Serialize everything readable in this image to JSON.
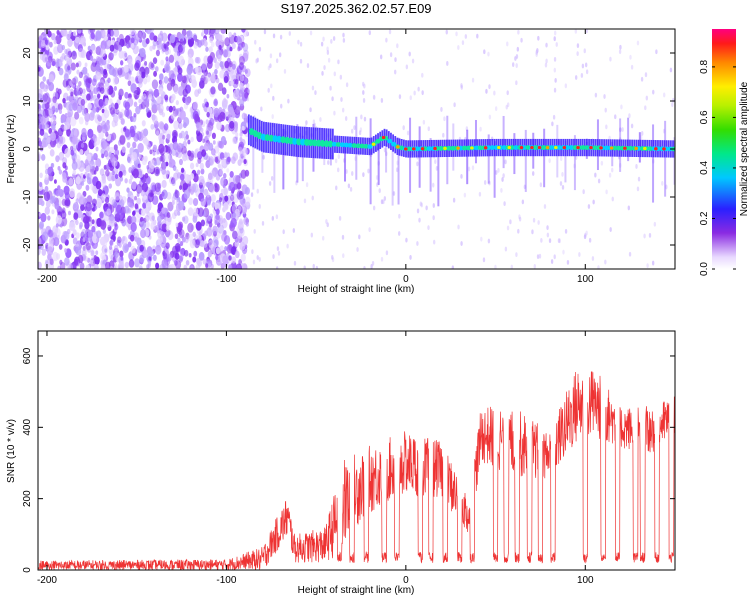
{
  "figure": {
    "title": "S197.2025.362.02.57.E09"
  },
  "chart_data": [
    {
      "type": "heatmap",
      "title": "S197.2025.362.02.57.E09",
      "xlabel": "Height of straight line (km)",
      "ylabel": "Frequency (Hz)",
      "xlim": [
        -205,
        150
      ],
      "ylim": [
        -25,
        25
      ],
      "xticks": [
        -200,
        -100,
        0,
        100
      ],
      "yticks": [
        -20,
        -10,
        0,
        10,
        20
      ],
      "description_of_data": {
        "noise_region_x": [
          -205,
          -88
        ],
        "signal_onset_x": -88,
        "carrier_frequency_hz": 0,
        "carrier_track": [
          {
            "x": -88,
            "f": 4.0
          },
          {
            "x": -80,
            "f": 2.5
          },
          {
            "x": -60,
            "f": 1.5
          },
          {
            "x": -40,
            "f": 1.0
          },
          {
            "x": -20,
            "f": 0.5
          },
          {
            "x": -12,
            "f": 2.5
          },
          {
            "x": -5,
            "f": 0.5
          },
          {
            "x": 0,
            "f": 0.0
          },
          {
            "x": 50,
            "f": 0.3
          },
          {
            "x": 100,
            "f": 0.3
          },
          {
            "x": 150,
            "f": 0.0
          }
        ]
      },
      "colorbar": {
        "label": "Normalized spectral amplitude",
        "range": [
          0.0,
          0.95
        ],
        "ticks": [
          0.0,
          0.2,
          0.4,
          0.6,
          0.8
        ],
        "tick_labels": [
          "0.0",
          "0.2",
          "0.4",
          "0.6",
          "0.8"
        ]
      }
    },
    {
      "type": "line",
      "title": "",
      "xlabel": "Height of straight line (km)",
      "ylabel": "SNR (10 * v/v)",
      "xlim": [
        -205,
        150
      ],
      "ylim": [
        0,
        670
      ],
      "xticks": [
        -200,
        -100,
        0,
        100
      ],
      "yticks": [
        0,
        200,
        400,
        600
      ],
      "color": "#ee3333",
      "series": [
        {
          "name": "SNR",
          "envelope": [
            {
              "x": -205,
              "base": 12,
              "spread": 15
            },
            {
              "x": -100,
              "base": 15,
              "spread": 15
            },
            {
              "x": -80,
              "base": 30,
              "spread": 35
            },
            {
              "x": -66,
              "base": 150,
              "spread": 60
            },
            {
              "x": -62,
              "base": 60,
              "spread": 40
            },
            {
              "x": -45,
              "base": 70,
              "spread": 50
            },
            {
              "x": -35,
              "base": 180,
              "spread": 130
            },
            {
              "x": -25,
              "base": 240,
              "spread": 100
            },
            {
              "x": -10,
              "base": 280,
              "spread": 90
            },
            {
              "x": 0,
              "base": 300,
              "spread": 90
            },
            {
              "x": 20,
              "base": 280,
              "spread": 80
            },
            {
              "x": 35,
              "base": 150,
              "spread": 60
            },
            {
              "x": 42,
              "base": 380,
              "spread": 80
            },
            {
              "x": 60,
              "base": 360,
              "spread": 100
            },
            {
              "x": 80,
              "base": 320,
              "spread": 70
            },
            {
              "x": 95,
              "base": 460,
              "spread": 110
            },
            {
              "x": 105,
              "base": 470,
              "spread": 100
            },
            {
              "x": 120,
              "base": 400,
              "spread": 60
            },
            {
              "x": 135,
              "base": 390,
              "spread": 70
            },
            {
              "x": 150,
              "base": 430,
              "spread": 60
            }
          ],
          "dropouts_x": [
            -37,
            -30,
            -22,
            -12,
            -5,
            8,
            14,
            22,
            30,
            37,
            50,
            56,
            62,
            69,
            75,
            82,
            100,
            110,
            118,
            128,
            132,
            140,
            148
          ]
        }
      ]
    }
  ]
}
